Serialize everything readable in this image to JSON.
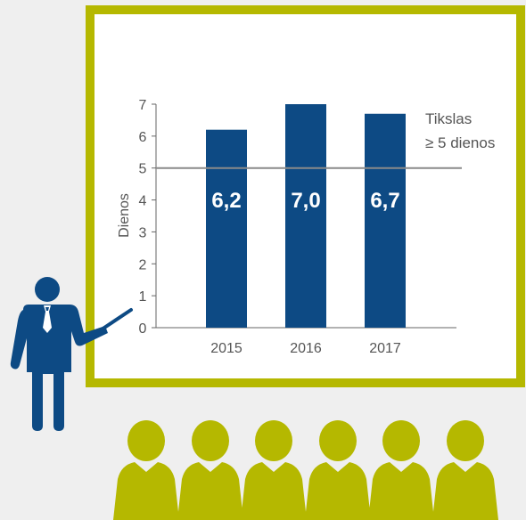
{
  "colors": {
    "background": "#efefef",
    "board_border": "#b5b800",
    "board_fill": "#ffffff",
    "bar": "#0d4a84",
    "target_line": "#8a8a8a",
    "presenter": "#0d4a84",
    "audience": "#b5b800",
    "axis": "#666666"
  },
  "icons": {
    "presenter": "presenter-icon",
    "pointer": "pointer-stick-icon",
    "audience": "audience-person-icon"
  },
  "chart_data": {
    "type": "bar",
    "categories": [
      "2015",
      "2016",
      "2017"
    ],
    "values": [
      6.2,
      7.0,
      6.7
    ],
    "data_labels": [
      "6,2",
      "7,0",
      "6,7"
    ],
    "title": "",
    "xlabel": "",
    "ylabel": "Dienos",
    "ylim": [
      0,
      7
    ],
    "yticks": [
      "0",
      "1",
      "2",
      "3",
      "4",
      "5",
      "6",
      "7"
    ],
    "grid": false,
    "target": {
      "value": 5,
      "label_line1": "Tikslas",
      "label_line2": "≥ 5 dienos"
    }
  }
}
